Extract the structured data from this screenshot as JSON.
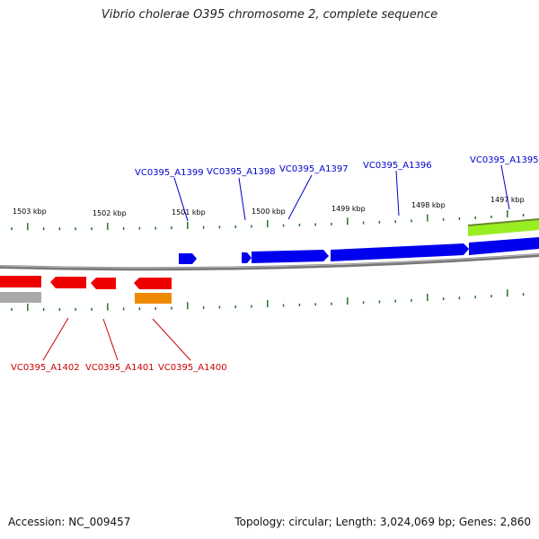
{
  "title": "Vibrio cholerae O395 chromosome 2, complete sequence",
  "footer": {
    "accession": "Accession: NC_009457",
    "summary": "Topology: circular; Length: 3,024,069 bp; Genes: 2,860"
  },
  "scale_labels": [
    "1503 kbp",
    "1502 kbp",
    "1501 kbp",
    "1500 kbp",
    "1499 kbp",
    "1498 kbp",
    "1497 kbp"
  ],
  "genes_forward": [
    {
      "label": "VC0395_A1399"
    },
    {
      "label": "VC0395_A1398"
    },
    {
      "label": "VC0395_A1397"
    },
    {
      "label": "VC0395_A1396"
    },
    {
      "label": "VC0395_A1395"
    }
  ],
  "genes_reverse": [
    {
      "label": "VC0395_A1402"
    },
    {
      "label": "VC0395_A1401"
    },
    {
      "label": "VC0395_A1400"
    }
  ],
  "colors": {
    "forward_label": "#0000cc",
    "forward_gene": "#0000ee",
    "reverse_label": "#cc0000",
    "reverse_gene": "#ee0000",
    "orange_feature": "#ee8800",
    "green_feature": "#99ee22",
    "gray_feature": "#aaaaaa",
    "backbone": "#777777",
    "tick": "#227722"
  }
}
